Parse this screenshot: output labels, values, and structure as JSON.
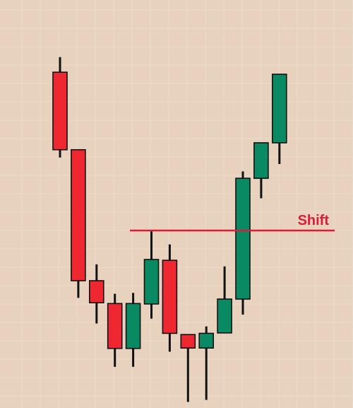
{
  "colors": {
    "background": "#e8d1bd",
    "gridline": "#eadacb",
    "bearish": "#ee2730",
    "bullish": "#0a8a62",
    "outline": "#111111",
    "wick": "#111111",
    "shift": "#d81e3a"
  },
  "chart_data": {
    "type": "candlestick",
    "title": "",
    "xlabel": "",
    "ylabel": "",
    "ylim": [
      0,
      1000
    ],
    "grid": true,
    "candles": [
      {
        "open": 823,
        "close": 633,
        "high": 860,
        "low": 614
      },
      {
        "open": 633,
        "close": 312,
        "high": 633,
        "low": 270
      },
      {
        "open": 312,
        "close": 258,
        "high": 352,
        "low": 207
      },
      {
        "open": 256,
        "close": 146,
        "high": 280,
        "low": 101
      },
      {
        "open": 146,
        "close": 256,
        "high": 282,
        "low": 101
      },
      {
        "open": 255,
        "close": 364,
        "high": 433,
        "low": 219
      },
      {
        "open": 362,
        "close": 183,
        "high": 401,
        "low": 138
      },
      {
        "open": 180,
        "close": 147,
        "high": 180,
        "low": 15
      },
      {
        "open": 147,
        "close": 183,
        "high": 200,
        "low": 20
      },
      {
        "open": 184,
        "close": 267,
        "high": 347,
        "low": 184
      },
      {
        "open": 267,
        "close": 563,
        "high": 580,
        "low": 229
      },
      {
        "open": 563,
        "close": 650,
        "high": 650,
        "low": 514
      },
      {
        "open": 650,
        "close": 818,
        "high": 818,
        "low": 598
      }
    ],
    "annotations": [
      {
        "type": "hline",
        "y": 435,
        "label": "Shift"
      }
    ]
  }
}
